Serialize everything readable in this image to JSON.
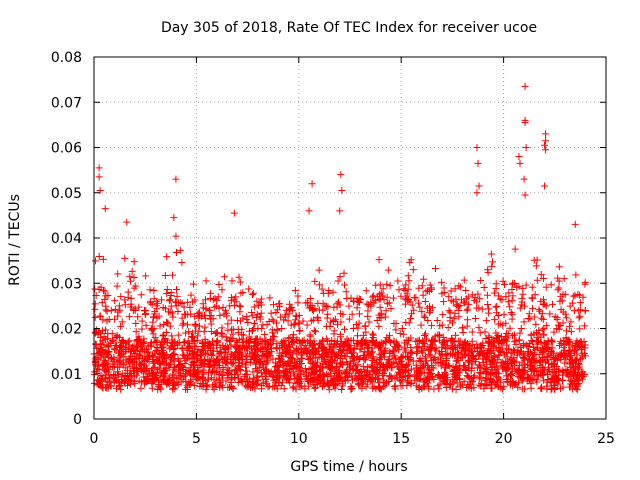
{
  "chart_data": {
    "type": "scatter",
    "title": "Day 305 of 2018, Rate Of TEC Index for receiver ucoe",
    "xlabel": "GPS time / hours",
    "ylabel": "ROTI / TECUs",
    "xlim": [
      0,
      25
    ],
    "ylim": [
      0,
      0.08
    ],
    "x_ticks": [
      "0",
      "5",
      "10",
      "15",
      "20",
      "25"
    ],
    "y_ticks": [
      "0",
      "0.01",
      "0.02",
      "0.03",
      "0.04",
      "0.05",
      "0.06",
      "0.07",
      "0.08"
    ],
    "grid": true,
    "marker": "+",
    "marker_color": "#ff0000",
    "x_range_hours": [
      0,
      24
    ],
    "baseline_roti": 0.012,
    "envelope": [
      {
        "hour": 0,
        "upper": 0.04
      },
      {
        "hour": 0.5,
        "upper": 0.035
      },
      {
        "hour": 1,
        "upper": 0.033
      },
      {
        "hour": 2,
        "upper": 0.038
      },
      {
        "hour": 3,
        "upper": 0.03
      },
      {
        "hour": 4,
        "upper": 0.042
      },
      {
        "hour": 5,
        "upper": 0.03
      },
      {
        "hour": 6,
        "upper": 0.032
      },
      {
        "hour": 7,
        "upper": 0.032
      },
      {
        "hour": 8,
        "upper": 0.027
      },
      {
        "hour": 9,
        "upper": 0.027
      },
      {
        "hour": 10,
        "upper": 0.03
      },
      {
        "hour": 11,
        "upper": 0.034
      },
      {
        "hour": 12,
        "upper": 0.038
      },
      {
        "hour": 13,
        "upper": 0.033
      },
      {
        "hour": 14,
        "upper": 0.037
      },
      {
        "hour": 15,
        "upper": 0.035
      },
      {
        "hour": 16,
        "upper": 0.036
      },
      {
        "hour": 17,
        "upper": 0.035
      },
      {
        "hour": 18,
        "upper": 0.036
      },
      {
        "hour": 19,
        "upper": 0.038
      },
      {
        "hour": 20,
        "upper": 0.035
      },
      {
        "hour": 21,
        "upper": 0.04
      },
      {
        "hour": 22,
        "upper": 0.038
      },
      {
        "hour": 23,
        "upper": 0.034
      },
      {
        "hour": 24,
        "upper": 0.033
      }
    ],
    "outliers": [
      {
        "x": 0.25,
        "y": 0.0555
      },
      {
        "x": 0.25,
        "y": 0.0535
      },
      {
        "x": 0.3,
        "y": 0.0505
      },
      {
        "x": 0.55,
        "y": 0.0465
      },
      {
        "x": 1.6,
        "y": 0.0435
      },
      {
        "x": 3.9,
        "y": 0.0445
      },
      {
        "x": 4.0,
        "y": 0.053
      },
      {
        "x": 6.85,
        "y": 0.0455
      },
      {
        "x": 10.5,
        "y": 0.046
      },
      {
        "x": 10.65,
        "y": 0.052
      },
      {
        "x": 12.05,
        "y": 0.054
      },
      {
        "x": 12.1,
        "y": 0.0505
      },
      {
        "x": 12.0,
        "y": 0.046
      },
      {
        "x": 18.7,
        "y": 0.06
      },
      {
        "x": 18.75,
        "y": 0.0565
      },
      {
        "x": 18.8,
        "y": 0.0515
      },
      {
        "x": 18.7,
        "y": 0.05
      },
      {
        "x": 20.75,
        "y": 0.058
      },
      {
        "x": 20.8,
        "y": 0.0565
      },
      {
        "x": 21.05,
        "y": 0.0735
      },
      {
        "x": 21.05,
        "y": 0.066
      },
      {
        "x": 21.05,
        "y": 0.0655
      },
      {
        "x": 21.1,
        "y": 0.06
      },
      {
        "x": 21.0,
        "y": 0.053
      },
      {
        "x": 21.05,
        "y": 0.0495
      },
      {
        "x": 22.05,
        "y": 0.063
      },
      {
        "x": 22.05,
        "y": 0.0615
      },
      {
        "x": 22.0,
        "y": 0.0605
      },
      {
        "x": 22.05,
        "y": 0.0595
      },
      {
        "x": 22.0,
        "y": 0.0515
      },
      {
        "x": 23.5,
        "y": 0.043
      }
    ]
  }
}
